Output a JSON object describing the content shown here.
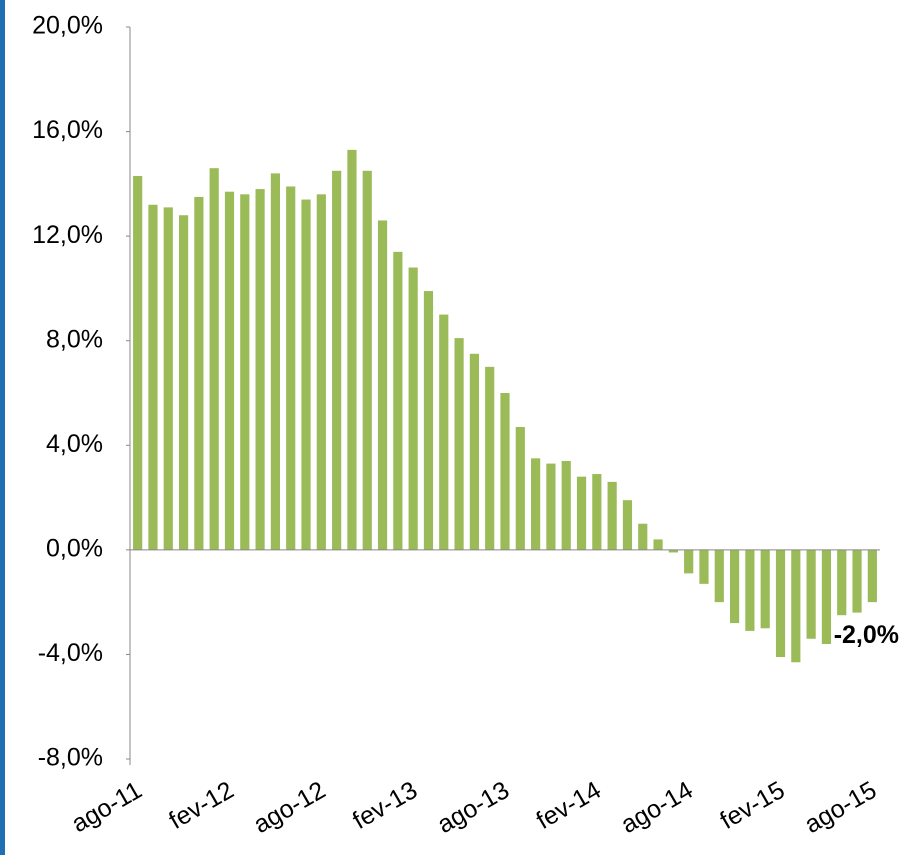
{
  "chart_data": {
    "type": "bar",
    "categories": [
      "ago-11",
      null,
      null,
      null,
      null,
      null,
      "fev-12",
      null,
      null,
      null,
      null,
      null,
      "ago-12",
      null,
      null,
      null,
      null,
      null,
      "fev-13",
      null,
      null,
      null,
      null,
      null,
      "ago-13",
      null,
      null,
      null,
      null,
      null,
      "fev-14",
      null,
      null,
      null,
      null,
      null,
      "ago-14",
      null,
      null,
      null,
      null,
      null,
      "fev-15",
      null,
      null,
      null,
      null,
      null,
      "ago-15"
    ],
    "values": [
      14.3,
      13.2,
      13.1,
      12.8,
      13.5,
      14.6,
      13.7,
      13.6,
      13.8,
      14.4,
      13.9,
      13.4,
      13.6,
      14.5,
      15.3,
      14.5,
      12.6,
      11.4,
      10.8,
      9.9,
      9.0,
      8.1,
      7.5,
      7.0,
      6.0,
      4.7,
      3.5,
      3.3,
      3.4,
      2.8,
      2.9,
      2.6,
      1.9,
      1.0,
      0.4,
      -0.1,
      -0.9,
      -1.3,
      -2.0,
      -2.8,
      -3.1,
      -3.0,
      -4.1,
      -4.3,
      -3.4,
      -3.6,
      -2.5,
      -2.4,
      -2.0
    ],
    "value_labels": [
      null,
      null,
      null,
      null,
      null,
      null,
      null,
      null,
      null,
      null,
      null,
      null,
      null,
      null,
      null,
      null,
      null,
      null,
      null,
      null,
      null,
      null,
      null,
      null,
      null,
      null,
      null,
      null,
      null,
      null,
      null,
      null,
      null,
      null,
      null,
      null,
      null,
      null,
      null,
      null,
      null,
      null,
      null,
      null,
      null,
      null,
      null,
      null,
      "-2,0%"
    ],
    "color": "#9bbb59",
    "ylim": [
      -8,
      20
    ],
    "yticks": [
      {
        "value": -8,
        "label": "-8,0%"
      },
      {
        "value": -4,
        "label": "-4,0%"
      },
      {
        "value": 0,
        "label": "0,0%"
      },
      {
        "value": 4,
        "label": "4,0%"
      },
      {
        "value": 8,
        "label": "8,0%"
      },
      {
        "value": 12,
        "label": "12,0%"
      },
      {
        "value": 16,
        "label": "16,0%"
      },
      {
        "value": 20,
        "label": "20,0%"
      }
    ],
    "grid": false
  }
}
